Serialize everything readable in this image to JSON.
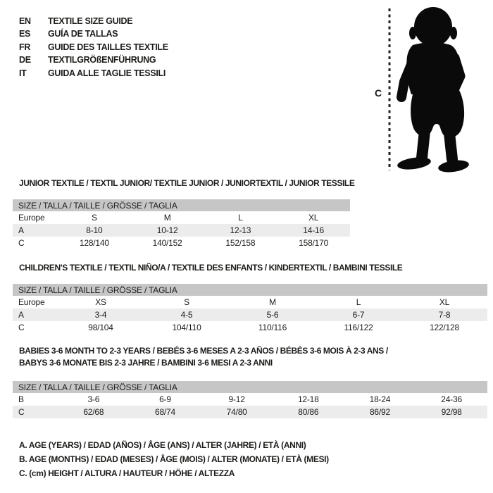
{
  "colors": {
    "ink": "#1c1c1a",
    "header_band": "#c6c6c6",
    "row_stripe": "#ececec",
    "silhouette": "#0a0a0a",
    "background": "#ffffff"
  },
  "languages": [
    {
      "code": "EN",
      "label": "TEXTILE SIZE GUIDE"
    },
    {
      "code": "ES",
      "label": "GUÍA DE TALLAS"
    },
    {
      "code": "FR",
      "label": "GUIDE DES TAILLES TEXTILE"
    },
    {
      "code": "DE",
      "label": "TEXTILGRÖßENFÜHRUNG"
    },
    {
      "code": "IT",
      "label": "GUIDA ALLE TAGLIE TESSILI"
    }
  ],
  "figure": {
    "measure_label": "C"
  },
  "tables": [
    {
      "title_lines": [
        "JUNIOR TEXTILE / TEXTIL JUNIOR/ TEXTILE JUNIOR / JUNIORTEXTIL / JUNIOR TESSILE"
      ],
      "size_header": "SIZE / TALLA / TAILLE / GRÖSSE / TAGLIA",
      "rows": [
        [
          "Europe",
          "S",
          "M",
          "L",
          "XL"
        ],
        [
          "A",
          "8-10",
          "10-12",
          "12-13",
          "14-16"
        ],
        [
          "C",
          "128/140",
          "140/152",
          "152/158",
          "158/170"
        ]
      ]
    },
    {
      "title_lines": [
        "CHILDREN'S TEXTILE / TEXTIL NIÑO/A / TEXTILE DES ENFANTS / KINDERTEXTIL / BAMBINI TESSILE"
      ],
      "size_header": "SIZE / TALLA / TAILLE / GRÖSSE / TAGLIA",
      "rows": [
        [
          "Europe",
          "XS",
          "S",
          "M",
          "L",
          "XL"
        ],
        [
          "A",
          "3-4",
          "4-5",
          "5-6",
          "6-7",
          "7-8"
        ],
        [
          "C",
          "98/104",
          "104/110",
          "110/116",
          "116/122",
          "122/128"
        ]
      ]
    },
    {
      "title_lines": [
        "BABIES 3-6 MONTH TO 2-3 YEARS / BEBÉS 3-6 MESES A 2-3 AÑOS / BÉBÉS 3-6 MOIS À 2-3 ANS /",
        "BABYS 3-6 MONATE BIS 2-3 JAHRE / BAMBINI 3-6 MESI A 2-3 ANNI"
      ],
      "size_header": "SIZE / TALLA / TAILLE / GRÖSSE / TAGLIA",
      "rows": [
        [
          "B",
          "3-6",
          "6-9",
          "9-12",
          "12-18",
          "18-24",
          "24-36"
        ],
        [
          "C",
          "62/68",
          "68/74",
          "74/80",
          "80/86",
          "86/92",
          "92/98"
        ]
      ]
    }
  ],
  "legend": [
    "A. AGE (YEARS) / EDAD (AÑOS) / ÂGE (ANS) / ALTER (JAHRE) / ETÀ (ANNI)",
    "B. AGE (MONTHS) / EDAD (MESES) / ÂGE (MOIS) / ALTER (MONATE) / ETÀ (MESI)",
    "C. (cm) HEIGHT / ALTURA / HAUTEUR / HÖHE / ALTEZZA"
  ]
}
